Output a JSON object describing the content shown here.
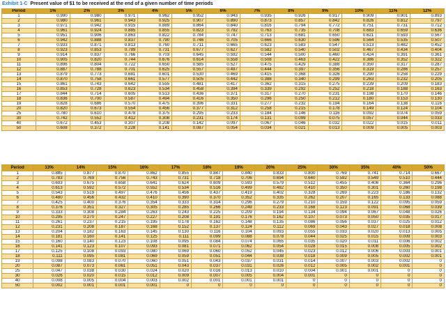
{
  "exhibit_label": "Exhibit 1-C",
  "title": "Present value of $1 to be received at the end of a given number of time periods",
  "colors": {
    "header_bg": "#d7a72f",
    "band_bg": "#f7dfa2",
    "grid": "#c4a24a",
    "exhibit_label": "#2f7bb8"
  },
  "table1": {
    "headers": [
      "Period",
      "1%",
      "2%",
      "3%",
      "4%",
      "5%",
      "6%",
      "7%",
      "8%",
      "9%",
      "10%",
      "11%",
      "12%"
    ],
    "rows": [
      [
        "1",
        "0.990",
        "0.980",
        "0.971",
        "0.962",
        "0.952",
        "0.943",
        "0.935",
        "0.926",
        "0.917",
        "0.909",
        "0.901",
        "0.893"
      ],
      [
        "2",
        "0.980",
        "0.961",
        "0.943",
        "0.925",
        "0.907",
        "0.890",
        "0.873",
        "0.857",
        "0.842",
        "0.826",
        "0.812",
        "0.797"
      ],
      [
        "3",
        "0.971",
        "0.942",
        "0.915",
        "0.889",
        "0.864",
        "0.840",
        "0.816",
        "0.794",
        "0.772",
        "0.751",
        "0.731",
        "0.712"
      ],
      [
        "4",
        "0.961",
        "0.924",
        "0.885",
        "0.855",
        "0.823",
        "0.792",
        "0.763",
        "0.735",
        "0.708",
        "0.683",
        "0.659",
        "0.636"
      ],
      [
        "5",
        "0.951",
        "0.906",
        "0.863",
        "0.822",
        "0.784",
        "0.747",
        "0.713",
        "0.681",
        "0.650",
        "0.621",
        "0.593",
        "0.567"
      ],
      [
        "6",
        "0.942",
        "0.888",
        "0.837",
        "0.790",
        "0.746",
        "0.705",
        "0.666",
        "0.630",
        "0.596",
        "0.564",
        "0.535",
        "0.507"
      ],
      [
        "7",
        "0.933",
        "0.871",
        "0.813",
        "0.760",
        "0.711",
        "0.665",
        "0.623",
        "0.583",
        "0.547",
        "0.513",
        "0.482",
        "0.452"
      ],
      [
        "8",
        "0.923",
        "0.853",
        "0.789",
        "0.731",
        "0.677",
        "0.627",
        "0.582",
        "0.540",
        "0.502",
        "0.467",
        "0.434",
        "0.404"
      ],
      [
        "9",
        "0.914",
        "0.837",
        "0.766",
        "0.703",
        "0.645",
        "0.592",
        "0.544",
        "0.500",
        "0.460",
        "0.424",
        "0.391",
        "0.361"
      ],
      [
        "10",
        "0.905",
        "0.820",
        "0.744",
        "0.676",
        "0.614",
        "0.558",
        "0.508",
        "0.463",
        "0.422",
        "0.386",
        "0.352",
        "0.322"
      ],
      [
        "11",
        "0.896",
        "0.804",
        "0.722",
        "0.650",
        "0.585",
        "0.527",
        "0.475",
        "0.429",
        "0.388",
        "0.350",
        "0.317",
        "0.287"
      ],
      [
        "12",
        "0.887",
        "0.788",
        "0.701",
        "0.625",
        "0.557",
        "0.497",
        "0.444",
        "0.397",
        "0.356",
        "0.319",
        "0.286",
        "0.257"
      ],
      [
        "13",
        "0.879",
        "0.773",
        "0.681",
        "0.601",
        "0.530",
        "0.469",
        "0.415",
        "0.368",
        "0.326",
        "0.290",
        "0.258",
        "0.229"
      ],
      [
        "14",
        "0.870",
        "0.758",
        "0.661",
        "0.577",
        "0.505",
        "0.442",
        "0.388",
        "0.340",
        "0.299",
        "0.263",
        "0.232",
        "0.205"
      ],
      [
        "15",
        "0.861",
        "0.743",
        "0.642",
        "0.555",
        "0.481",
        "0.417",
        "0.362",
        "0.315",
        "0.275",
        "0.239",
        "0.209",
        "0.183"
      ],
      [
        "16",
        "0.853",
        "0.728",
        "0.623",
        "0.534",
        "0.458",
        "0.394",
        "0.339",
        "0.292",
        "0.252",
        "0.218",
        "0.188",
        "0.163"
      ],
      [
        "17",
        "0.844",
        "0.714",
        "0.605",
        "0.513",
        "0.436",
        "0.371",
        "0.317",
        "0.270",
        "0.231",
        "0.198",
        "0.170",
        "0.146"
      ],
      [
        "18",
        "0.836",
        "0.700",
        "0.587",
        "0.494",
        "0.416",
        "0.350",
        "0.296",
        "0.250",
        "0.212",
        "0.180",
        "0.153",
        "0.130"
      ],
      [
        "19",
        "0.828",
        "0.686",
        "0.570",
        "0.475",
        "0.396",
        "0.331",
        "0.277",
        "0.232",
        "0.194",
        "0.164",
        "0.138",
        "0.116"
      ],
      [
        "20",
        "0.820",
        "0.673",
        "0.554",
        "0.456",
        "0.377",
        "0.312",
        "0.258",
        "0.215",
        "0.178",
        "0.149",
        "0.124",
        "0.104"
      ],
      [
        "25",
        "0.780",
        "0.610",
        "0.478",
        "0.375",
        "0.295",
        "0.233",
        "0.184",
        "0.146",
        "0.116",
        "0.092",
        "0.074",
        "0.059"
      ],
      [
        "30",
        "0.742",
        "0.552",
        "0.412",
        "0.308",
        "0.231",
        "0.174",
        "0.131",
        "0.099",
        "0.075",
        "0.057",
        "0.044",
        "0.033"
      ],
      [
        "40",
        "0.672",
        "0.453",
        "0.307",
        "0.208",
        "0.142",
        "0.097",
        "0.067",
        "0.046",
        "0.032",
        "0.022",
        "0.015",
        "0.011"
      ],
      [
        "50",
        "0.608",
        "0.372",
        "0.228",
        "0.141",
        "0.087",
        "0.054",
        "0.034",
        "0.021",
        "0.013",
        "0.009",
        "0.005",
        "0.003"
      ]
    ]
  },
  "table2": {
    "headers": [
      "Period",
      "13%",
      "14%",
      "15%",
      "16%",
      "17%",
      "18%",
      "19%",
      "20%",
      "25%",
      "30%",
      "35%",
      "40%",
      "50%"
    ],
    "rows": [
      [
        "1",
        "0.885",
        "0.877",
        "0.870",
        "0.862",
        "0.855",
        "0.847",
        "0.840",
        "0.833",
        "0.800",
        "0.769",
        "0.741",
        "0.714",
        "0.667"
      ],
      [
        "2",
        "0.783",
        "0.769",
        "0.756",
        "0.743",
        "0.731",
        "0.718",
        "0.706",
        "0.694",
        "0.640",
        "0.592",
        "0.549",
        "0.510",
        "0.444"
      ],
      [
        "3",
        "0.693",
        "0.675",
        "0.658",
        "0.641",
        "0.624",
        "0.609",
        "0.593",
        "0.579",
        "0.512",
        "0.455",
        "0.406",
        "0.364",
        "0.296"
      ],
      [
        "4",
        "0.613",
        "0.592",
        "0.572",
        "0.552",
        "0.534",
        "0.516",
        "0.499",
        "0.482",
        "0.410",
        "0.350",
        "0.301",
        "0.260",
        "0.198"
      ],
      [
        "5",
        "0.543",
        "0.519",
        "0.497",
        "0.476",
        "0.456",
        "0.437",
        "0.419",
        "0.402",
        "0.328",
        "0.269",
        "0.223",
        "0.186",
        "0.132"
      ],
      [
        "6",
        "0.480",
        "0.456",
        "0.432",
        "0.410",
        "0.390",
        "0.370",
        "0.352",
        "0.335",
        "0.262",
        "0.207",
        "0.165",
        "0.133",
        "0.088"
      ],
      [
        "7",
        "0.425",
        "0.400",
        "0.376",
        "0.354",
        "0.333",
        "0.314",
        "0.296",
        "0.279",
        "0.210",
        "0.159",
        "0.122",
        "0.095",
        "0.059"
      ],
      [
        "8",
        "0.376",
        "0.351",
        "0.327",
        "0.305",
        "0.285",
        "0.266",
        "0.249",
        "0.233",
        "0.168",
        "0.123",
        "0.091",
        "0.068",
        "0.039"
      ],
      [
        "9",
        "0.333",
        "0.308",
        "0.284",
        "0.263",
        "0.243",
        "0.225",
        "0.209",
        "0.194",
        "0.134",
        "0.094",
        "0.067",
        "0.048",
        "0.026"
      ],
      [
        "10",
        "0.295",
        "0.270",
        "0.247",
        "0.227",
        "0.208",
        "0.191",
        "0.176",
        "0.162",
        "0.107",
        "0.073",
        "0.050",
        "0.035",
        "0.017"
      ],
      [
        "11",
        "0.261",
        "0.237",
        "0.215",
        "0.195",
        "0.178",
        "0.162",
        "0.148",
        "0.135",
        "0.086",
        "0.056",
        "0.037",
        "0.025",
        "0.012"
      ],
      [
        "12",
        "0.231",
        "0.208",
        "0.187",
        "0.168",
        "0.152",
        "0.137",
        "0.124",
        "0.112",
        "0.069",
        "0.043",
        "0.027",
        "0.018",
        "0.008"
      ],
      [
        "13",
        "0.204",
        "0.182",
        "0.163",
        "0.145",
        "0.130",
        "0.116",
        "0.104",
        "0.093",
        "0.055",
        "0.033",
        "0.020",
        "0.013",
        "0.005"
      ],
      [
        "14",
        "0.181",
        "0.160",
        "0.141",
        "0.125",
        "0.111",
        "0.099",
        "0.088",
        "0.078",
        "0.044",
        "0.025",
        "0.015",
        "0.009",
        "0.003"
      ],
      [
        "15",
        "0.160",
        "0.140",
        "0.123",
        "0.108",
        "0.095",
        "0.084",
        "0.074",
        "0.065",
        "0.035",
        "0.020",
        "0.011",
        "0.006",
        "0.002"
      ],
      [
        "16",
        "0.141",
        "0.123",
        "0.107",
        "0.093",
        "0.081",
        "0.071",
        "0.062",
        "0.054",
        "0.028",
        "0.015",
        "0.008",
        "0.005",
        "0.002"
      ],
      [
        "17",
        "0.125",
        "0.108",
        "0.093",
        "0.080",
        "0.069",
        "0.060",
        "0.052",
        "0.045",
        "0.023",
        "0.012",
        "0.006",
        "0.003",
        "0.001"
      ],
      [
        "18",
        "0.111",
        "0.095",
        "0.081",
        "0.069",
        "0.059",
        "0.051",
        "0.044",
        "0.038",
        "0.018",
        "0.009",
        "0.005",
        "0.002",
        "0.001"
      ],
      [
        "19",
        "0.098",
        "0.083",
        "0.070",
        "0.060",
        "0.051",
        "0.043",
        "0.037",
        "0.031",
        "0.014",
        "0.007",
        "0.003",
        "0.002",
        "0"
      ],
      [
        "20",
        "0.087",
        "0.073",
        "0.061",
        "0.051",
        "0.043",
        "0.037",
        "0.031",
        "0.026",
        "0.012",
        "0.005",
        "0.002",
        "0.001",
        "0"
      ],
      [
        "25",
        "0.047",
        "0.038",
        "0.030",
        "0.024",
        "0.020",
        "0.016",
        "0.013",
        "0.010",
        "0.004",
        "0.001",
        "0.001",
        "0",
        "0"
      ],
      [
        "30",
        "0.026",
        "0.020",
        "0.015",
        "0.012",
        "0.009",
        "0.007",
        "0.005",
        "0.004",
        "0.001",
        "0",
        "0",
        "0",
        "0"
      ],
      [
        "40",
        "0.008",
        "0.005",
        "0.004",
        "0.003",
        "0.002",
        "0.001",
        "0.001",
        "0.001",
        "0",
        "0",
        "0",
        "0",
        "0"
      ],
      [
        "50",
        "0.002",
        "0.001",
        "0.001",
        "0.001",
        "0",
        "0",
        "0",
        "0",
        "0",
        "0",
        "0",
        "0",
        "0"
      ]
    ]
  }
}
